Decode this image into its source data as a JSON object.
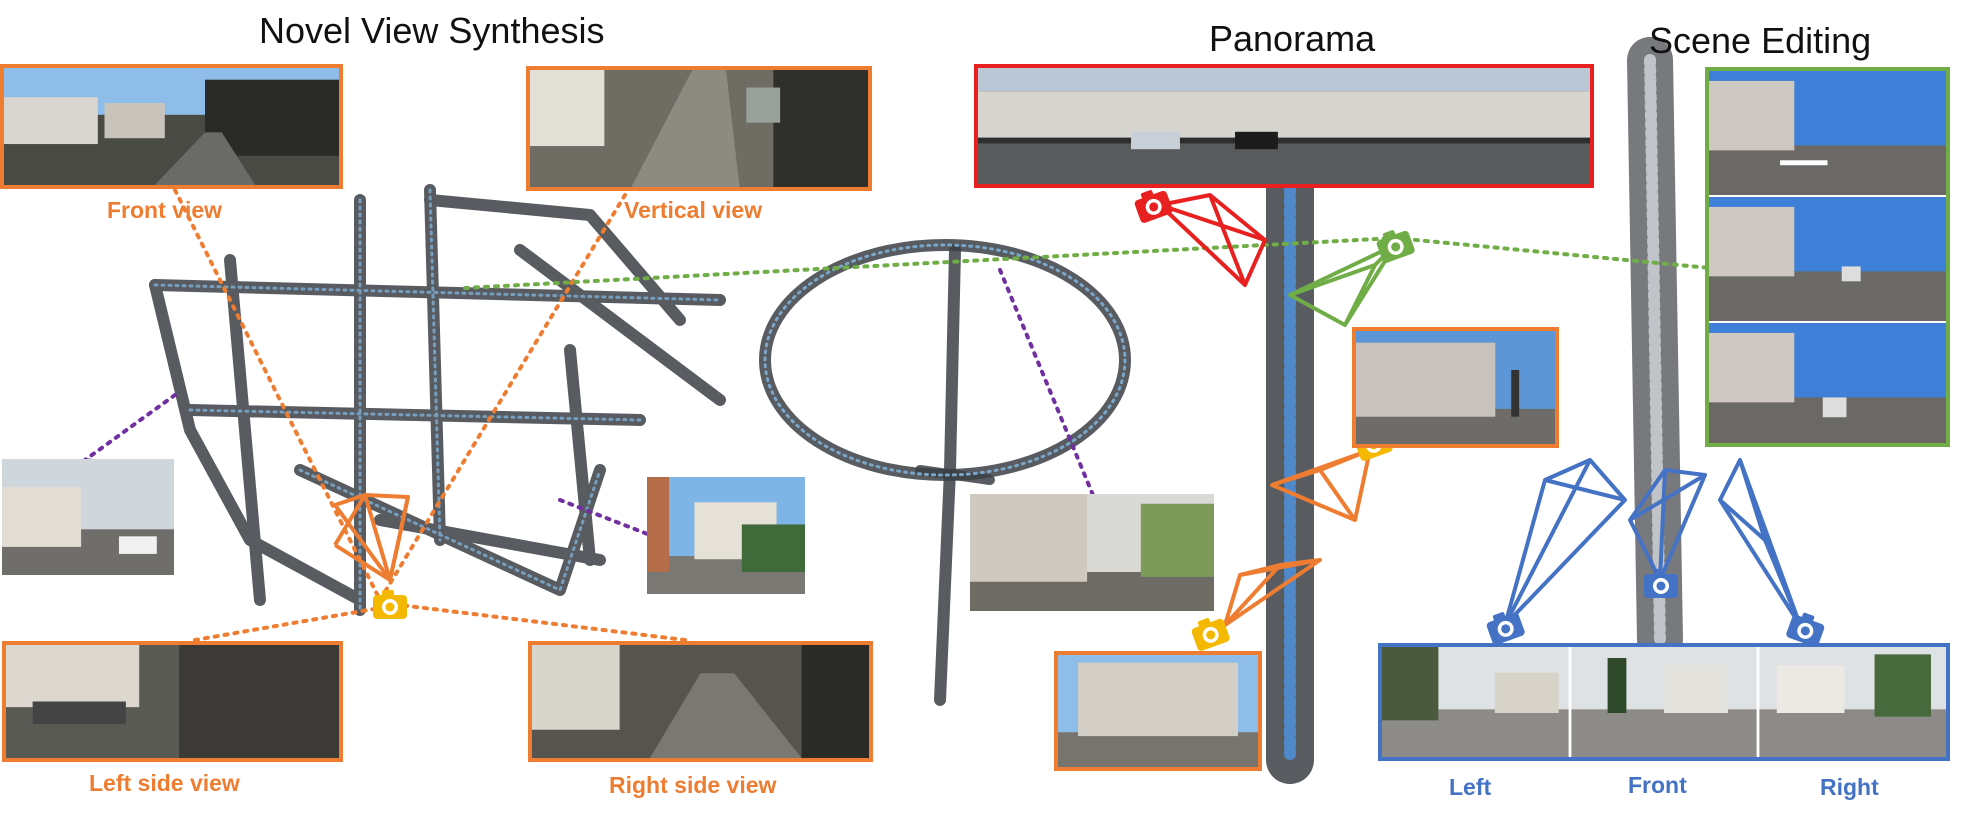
{
  "sections": {
    "novel_view_title": "Novel View Synthesis",
    "panorama_title": "Panorama",
    "scene_editing_title": "Scene Editing"
  },
  "labels": {
    "front_view": "Front view",
    "vertical_view": "Vertical view",
    "left_side_view": "Left side view",
    "right_side_view": "Right side view",
    "left": "Left",
    "front": "Front",
    "right": "Right"
  },
  "colors": {
    "orange": "#ee7d31",
    "red": "#e8201f",
    "green": "#70ad47",
    "blue": "#4472c4",
    "purple": "#7030a0",
    "camera_yellow": "#f5b800"
  }
}
